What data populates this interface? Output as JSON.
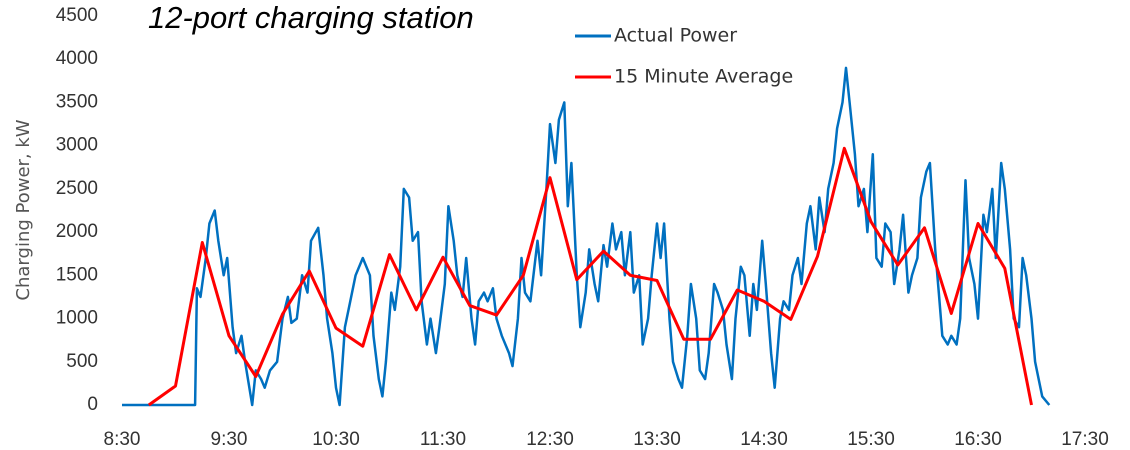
{
  "chart_data": {
    "type": "line",
    "title": "12-port charging station",
    "y_label": "Charging Power, kW",
    "xlim": [
      510,
      1050
    ],
    "ylim": [
      0,
      4500
    ],
    "xticks": [
      {
        "value": 510,
        "label": "8:30"
      },
      {
        "value": 570,
        "label": "9:30"
      },
      {
        "value": 630,
        "label": "10:30"
      },
      {
        "value": 690,
        "label": "11:30"
      },
      {
        "value": 750,
        "label": "12:30"
      },
      {
        "value": 810,
        "label": "13:30"
      },
      {
        "value": 870,
        "label": "14:30"
      },
      {
        "value": 930,
        "label": "15:30"
      },
      {
        "value": 990,
        "label": "16:30"
      },
      {
        "value": 1050,
        "label": "17:30"
      }
    ],
    "yticks": [
      0,
      500,
      1000,
      1500,
      2000,
      2500,
      3000,
      3500,
      4000,
      4500
    ],
    "grid": false,
    "legend": "top",
    "series": [
      {
        "name": "Actual Power",
        "color": "#0070c0",
        "x": [
          510,
          540,
          551,
          552,
          554,
          557,
          559,
          562,
          564,
          567,
          569,
          572,
          574,
          577,
          579,
          583,
          585,
          588,
          590,
          593,
          597,
          600,
          603,
          605,
          608,
          611,
          614,
          616,
          620,
          623,
          625,
          628,
          630,
          632,
          635,
          637,
          641,
          645,
          649,
          651,
          654,
          656,
          658,
          661,
          663,
          666,
          668,
          671,
          673,
          676,
          678,
          681,
          683,
          686,
          688,
          691,
          693,
          696,
          698,
          701,
          703,
          706,
          708,
          710,
          713,
          715,
          718,
          720,
          723,
          727,
          729,
          732,
          734,
          736,
          739,
          743,
          745,
          748,
          750,
          753,
          755,
          758,
          760,
          762,
          765,
          767,
          770,
          772,
          775,
          777,
          780,
          782,
          785,
          787,
          790,
          792,
          795,
          797,
          800,
          802,
          805,
          807,
          810,
          812,
          814,
          817,
          819,
          822,
          824,
          827,
          829,
          832,
          834,
          837,
          839,
          842,
          844,
          847,
          849,
          852,
          854,
          857,
          859,
          862,
          864,
          866,
          869,
          871,
          874,
          876,
          879,
          881,
          884,
          886,
          889,
          891,
          894,
          896,
          899,
          901,
          904,
          906,
          909,
          911,
          914,
          916,
          918,
          921,
          923,
          926,
          928,
          931,
          933,
          936,
          938,
          941,
          943,
          946,
          948,
          951,
          953,
          956,
          958,
          961,
          963,
          966,
          968,
          970,
          973,
          975,
          978,
          980,
          983,
          985,
          988,
          990,
          993,
          995,
          998,
          1000,
          1003,
          1005,
          1008,
          1010,
          1013,
          1015,
          1017,
          1020,
          1022,
          1026,
          1030
        ],
        "values": [
          0,
          0,
          0,
          1350,
          1250,
          1700,
          2100,
          2250,
          1900,
          1500,
          1700,
          900,
          600,
          800,
          500,
          0,
          400,
          300,
          200,
          400,
          500,
          1000,
          1250,
          950,
          1000,
          1500,
          1300,
          1900,
          2050,
          1500,
          1000,
          600,
          200,
          0,
          900,
          1100,
          1500,
          1700,
          1500,
          800,
          300,
          100,
          500,
          1300,
          1100,
          1600,
          2500,
          2400,
          1900,
          2000,
          1200,
          700,
          1000,
          600,
          900,
          1400,
          2300,
          1900,
          1500,
          1250,
          1700,
          1000,
          700,
          1200,
          1300,
          1200,
          1350,
          1000,
          800,
          600,
          450,
          1000,
          1700,
          1300,
          1200,
          1900,
          1500,
          2500,
          3250,
          2800,
          3300,
          3500,
          2300,
          2800,
          1500,
          900,
          1300,
          1800,
          1400,
          1200,
          1850,
          1600,
          2100,
          1800,
          2000,
          1500,
          2000,
          1300,
          1500,
          700,
          1000,
          1500,
          2100,
          1700,
          2100,
          1000,
          500,
          300,
          200,
          800,
          1400,
          1000,
          400,
          300,
          600,
          1400,
          1300,
          1100,
          700,
          300,
          1000,
          1600,
          1500,
          800,
          1400,
          1100,
          1900,
          1400,
          600,
          200,
          1000,
          1200,
          1100,
          1500,
          1700,
          1400,
          2100,
          2300,
          1800,
          2400,
          2000,
          2500,
          2800,
          3200,
          3500,
          3900,
          3500,
          2900,
          2300,
          2500,
          2000,
          2900,
          1700,
          1600,
          2100,
          2000,
          1400,
          1800,
          2200,
          1300,
          1500,
          1700,
          2400,
          2700,
          2800,
          1800,
          1300,
          800,
          700,
          800,
          700,
          1000,
          2600,
          1700,
          1400,
          1000,
          2200,
          2000,
          2500,
          1700,
          2800,
          2500,
          1800,
          1000,
          900,
          1700,
          1500,
          1000,
          500,
          100,
          0
        ]
      },
      {
        "name": "15 Minute Average",
        "color": "#ff0000",
        "x": [
          525,
          540,
          555,
          570,
          585,
          600,
          615,
          630,
          645,
          660,
          675,
          690,
          705,
          720,
          735,
          750,
          765,
          780,
          795,
          810,
          825,
          840,
          855,
          870,
          885,
          900,
          915,
          930,
          945,
          960,
          975,
          990,
          1005,
          1020
        ],
        "values": [
          0,
          220,
          1880,
          800,
          330,
          1050,
          1550,
          890,
          680,
          1740,
          1100,
          1710,
          1150,
          1040,
          1500,
          2630,
          1450,
          1780,
          1500,
          1440,
          760,
          760,
          1330,
          1200,
          990,
          1720,
          2970,
          2120,
          1620,
          2050,
          1060,
          2100,
          1580,
          0
        ]
      }
    ]
  }
}
